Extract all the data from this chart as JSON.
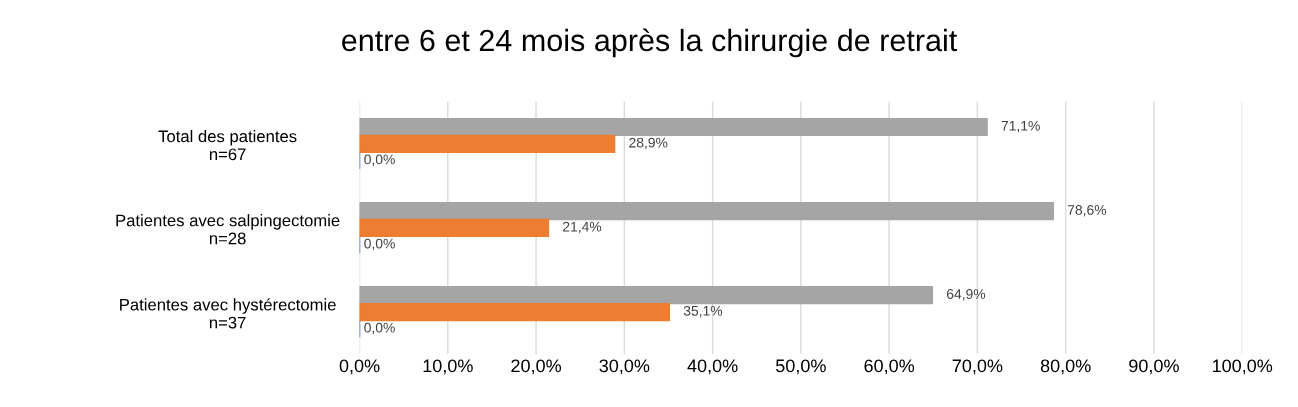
{
  "chart_data": {
    "type": "bar",
    "orientation": "horizontal",
    "title": "entre 6 et 24 mois après la chirurgie de retrait",
    "categories": [
      "Total des patientes\nn=67",
      "Patientes avec salpingectomie\nn=28",
      "Patientes avec hystérectomie\nn=37"
    ],
    "series": [
      {
        "color": "#a5a5a5",
        "values": [
          71.1,
          78.6,
          64.9
        ],
        "value_labels": [
          "71,1%",
          "78,6%",
          "64,9%"
        ]
      },
      {
        "color": "#ed7d31",
        "values": [
          28.9,
          21.4,
          35.1
        ],
        "value_labels": [
          "28,9%",
          "21,4%",
          "35,1%"
        ]
      },
      {
        "color": "#4472c4",
        "values": [
          0,
          0,
          0
        ],
        "value_labels": [
          "0,0%",
          "0,0%",
          "0,0%"
        ]
      }
    ],
    "xlim": [
      0,
      100
    ],
    "xticks": [
      {
        "value": 0,
        "label": "0,0%"
      },
      {
        "value": 10,
        "label": "10,0%"
      },
      {
        "value": 20,
        "label": "20,0%"
      },
      {
        "value": 30,
        "label": "30,0%"
      },
      {
        "value": 40,
        "label": "40,0%"
      },
      {
        "value": 50,
        "label": "50,0%"
      },
      {
        "value": 60,
        "label": "60,0%"
      },
      {
        "value": 70,
        "label": "70,0%"
      },
      {
        "value": 80,
        "label": "80,0%"
      },
      {
        "value": 90,
        "label": "90,0%"
      },
      {
        "value": 100,
        "label": "100,0%"
      }
    ],
    "grid": "x"
  }
}
